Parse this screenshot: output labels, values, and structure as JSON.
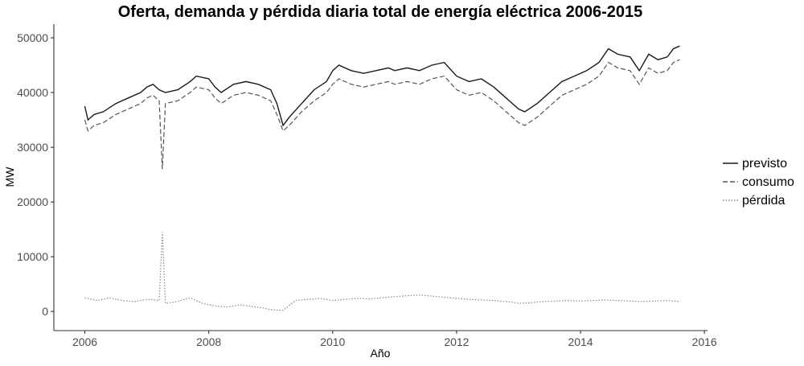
{
  "chart_data": {
    "type": "line",
    "title": "Oferta, demanda y pérdida diaria total de energía eléctrica 2006-2015",
    "xlabel": "Año",
    "ylabel": "MW",
    "xlim": [
      2005.5,
      2016.05
    ],
    "ylim": [
      -3500,
      52500
    ],
    "x_ticks": [
      2006,
      2008,
      2010,
      2012,
      2014,
      2016
    ],
    "y_ticks": [
      0,
      10000,
      20000,
      30000,
      40000,
      50000
    ],
    "grid": false,
    "legend_position": "right",
    "x_unit": "year (decimal)",
    "series": [
      {
        "name": "previsto",
        "color": "#1a1a1a",
        "dash": "solid",
        "points": [
          [
            2006.0,
            37500
          ],
          [
            2006.05,
            35000
          ],
          [
            2006.15,
            36000
          ],
          [
            2006.3,
            36500
          ],
          [
            2006.5,
            38000
          ],
          [
            2006.7,
            39000
          ],
          [
            2006.9,
            40000
          ],
          [
            2007.0,
            41000
          ],
          [
            2007.1,
            41500
          ],
          [
            2007.2,
            40500
          ],
          [
            2007.3,
            40000
          ],
          [
            2007.5,
            40500
          ],
          [
            2007.7,
            42000
          ],
          [
            2007.8,
            43000
          ],
          [
            2008.0,
            42500
          ],
          [
            2008.1,
            41000
          ],
          [
            2008.2,
            40000
          ],
          [
            2008.4,
            41500
          ],
          [
            2008.6,
            42000
          ],
          [
            2008.8,
            41500
          ],
          [
            2009.0,
            40500
          ],
          [
            2009.1,
            38000
          ],
          [
            2009.2,
            34000
          ],
          [
            2009.3,
            35500
          ],
          [
            2009.5,
            38000
          ],
          [
            2009.7,
            40500
          ],
          [
            2009.9,
            42000
          ],
          [
            2010.0,
            44000
          ],
          [
            2010.1,
            45000
          ],
          [
            2010.3,
            44000
          ],
          [
            2010.5,
            43500
          ],
          [
            2010.7,
            44000
          ],
          [
            2010.9,
            44500
          ],
          [
            2011.0,
            44000
          ],
          [
            2011.2,
            44500
          ],
          [
            2011.4,
            44000
          ],
          [
            2011.6,
            45000
          ],
          [
            2011.8,
            45500
          ],
          [
            2012.0,
            43000
          ],
          [
            2012.2,
            42000
          ],
          [
            2012.4,
            42500
          ],
          [
            2012.6,
            41000
          ],
          [
            2012.8,
            39000
          ],
          [
            2013.0,
            37000
          ],
          [
            2013.1,
            36500
          ],
          [
            2013.3,
            38000
          ],
          [
            2013.5,
            40000
          ],
          [
            2013.7,
            42000
          ],
          [
            2013.9,
            43000
          ],
          [
            2014.1,
            44000
          ],
          [
            2014.3,
            45500
          ],
          [
            2014.45,
            48000
          ],
          [
            2014.6,
            47000
          ],
          [
            2014.8,
            46500
          ],
          [
            2014.95,
            44000
          ],
          [
            2015.1,
            47000
          ],
          [
            2015.25,
            46000
          ],
          [
            2015.4,
            46500
          ],
          [
            2015.5,
            48000
          ],
          [
            2015.6,
            48500
          ]
        ]
      },
      {
        "name": "consumo",
        "color": "#555555",
        "dash": "dashed",
        "points": [
          [
            2006.0,
            35000
          ],
          [
            2006.05,
            33000
          ],
          [
            2006.15,
            34000
          ],
          [
            2006.3,
            34500
          ],
          [
            2006.5,
            36000
          ],
          [
            2006.7,
            37000
          ],
          [
            2006.9,
            38000
          ],
          [
            2007.0,
            39000
          ],
          [
            2007.1,
            39500
          ],
          [
            2007.2,
            38500
          ],
          [
            2007.25,
            26000
          ],
          [
            2007.3,
            38000
          ],
          [
            2007.5,
            38500
          ],
          [
            2007.7,
            40000
          ],
          [
            2007.8,
            41000
          ],
          [
            2008.0,
            40500
          ],
          [
            2008.1,
            39000
          ],
          [
            2008.2,
            38000
          ],
          [
            2008.4,
            39500
          ],
          [
            2008.6,
            40000
          ],
          [
            2008.8,
            39500
          ],
          [
            2009.0,
            38500
          ],
          [
            2009.1,
            36000
          ],
          [
            2009.2,
            33000
          ],
          [
            2009.3,
            34000
          ],
          [
            2009.5,
            36500
          ],
          [
            2009.7,
            38500
          ],
          [
            2009.9,
            40000
          ],
          [
            2010.0,
            41500
          ],
          [
            2010.1,
            42500
          ],
          [
            2010.3,
            41500
          ],
          [
            2010.5,
            41000
          ],
          [
            2010.7,
            41500
          ],
          [
            2010.9,
            42000
          ],
          [
            2011.0,
            41500
          ],
          [
            2011.2,
            42000
          ],
          [
            2011.4,
            41500
          ],
          [
            2011.6,
            42500
          ],
          [
            2011.8,
            43000
          ],
          [
            2012.0,
            40500
          ],
          [
            2012.2,
            39500
          ],
          [
            2012.4,
            40000
          ],
          [
            2012.6,
            38500
          ],
          [
            2012.8,
            36500
          ],
          [
            2013.0,
            34500
          ],
          [
            2013.1,
            34000
          ],
          [
            2013.3,
            35500
          ],
          [
            2013.5,
            37500
          ],
          [
            2013.7,
            39500
          ],
          [
            2013.9,
            40500
          ],
          [
            2014.1,
            41500
          ],
          [
            2014.3,
            43000
          ],
          [
            2014.45,
            45500
          ],
          [
            2014.6,
            44500
          ],
          [
            2014.8,
            44000
          ],
          [
            2014.95,
            41500
          ],
          [
            2015.1,
            44500
          ],
          [
            2015.25,
            43500
          ],
          [
            2015.4,
            44000
          ],
          [
            2015.5,
            45500
          ],
          [
            2015.6,
            46000
          ]
        ]
      },
      {
        "name": "pérdida",
        "color": "#888888",
        "dash": "dotted",
        "points": [
          [
            2006.0,
            2500
          ],
          [
            2006.2,
            2000
          ],
          [
            2006.4,
            2500
          ],
          [
            2006.6,
            2000
          ],
          [
            2006.8,
            1800
          ],
          [
            2007.0,
            2200
          ],
          [
            2007.2,
            2000
          ],
          [
            2007.25,
            14500
          ],
          [
            2007.3,
            1500
          ],
          [
            2007.5,
            1800
          ],
          [
            2007.7,
            2500
          ],
          [
            2007.9,
            1500
          ],
          [
            2008.1,
            1000
          ],
          [
            2008.3,
            800
          ],
          [
            2008.5,
            1200
          ],
          [
            2008.7,
            900
          ],
          [
            2008.9,
            600
          ],
          [
            2009.0,
            300
          ],
          [
            2009.2,
            200
          ],
          [
            2009.4,
            2000
          ],
          [
            2009.6,
            2200
          ],
          [
            2009.8,
            2400
          ],
          [
            2010.0,
            2000
          ],
          [
            2010.2,
            2200
          ],
          [
            2010.4,
            2400
          ],
          [
            2010.6,
            2300
          ],
          [
            2010.8,
            2500
          ],
          [
            2011.0,
            2700
          ],
          [
            2011.2,
            2900
          ],
          [
            2011.4,
            3000
          ],
          [
            2011.6,
            2800
          ],
          [
            2011.8,
            2600
          ],
          [
            2012.0,
            2400
          ],
          [
            2012.2,
            2200
          ],
          [
            2012.4,
            2100
          ],
          [
            2012.6,
            2000
          ],
          [
            2012.8,
            1800
          ],
          [
            2013.0,
            1500
          ],
          [
            2013.2,
            1600
          ],
          [
            2013.4,
            1800
          ],
          [
            2013.6,
            1900
          ],
          [
            2013.8,
            2000
          ],
          [
            2014.0,
            1900
          ],
          [
            2014.2,
            2000
          ],
          [
            2014.4,
            2100
          ],
          [
            2014.6,
            2000
          ],
          [
            2014.8,
            1900
          ],
          [
            2015.0,
            1800
          ],
          [
            2015.2,
            1900
          ],
          [
            2015.4,
            2000
          ],
          [
            2015.6,
            1800
          ]
        ]
      }
    ]
  }
}
